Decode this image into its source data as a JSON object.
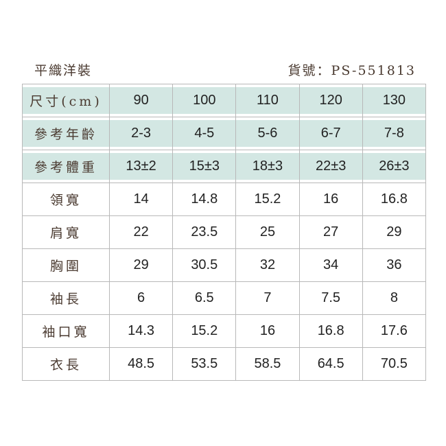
{
  "product_name": "平織洋裝",
  "product_code": "貨號：PS-551813",
  "colors": {
    "header_fill": "#d3e7e3",
    "label_text": "#4a3a30",
    "border": "#b8b8b8"
  },
  "header_rows": [
    {
      "label": "尺寸(cm)",
      "values": [
        "90",
        "100",
        "110",
        "120",
        "130"
      ]
    },
    {
      "label": "參考年齡",
      "values": [
        "2-3",
        "4-5",
        "5-6",
        "6-7",
        "7-8"
      ]
    },
    {
      "label": "參考體重",
      "values": [
        "13±2",
        "15±3",
        "18±3",
        "22±3",
        "26±3"
      ]
    }
  ],
  "rows": [
    {
      "label": "領寬",
      "values": [
        "14",
        "14.8",
        "15.2",
        "16",
        "16.8"
      ]
    },
    {
      "label": "肩寬",
      "values": [
        "22",
        "23.5",
        "25",
        "27",
        "29"
      ]
    },
    {
      "label": "胸圍",
      "values": [
        "29",
        "30.5",
        "32",
        "34",
        "36"
      ]
    },
    {
      "label": "袖長",
      "values": [
        "6",
        "6.5",
        "7",
        "7.5",
        "8"
      ]
    },
    {
      "label": "袖口寬",
      "values": [
        "14.3",
        "15.2",
        "16",
        "16.8",
        "17.6"
      ]
    },
    {
      "label": "衣長",
      "values": [
        "48.5",
        "53.5",
        "58.5",
        "64.5",
        "70.5"
      ]
    }
  ]
}
